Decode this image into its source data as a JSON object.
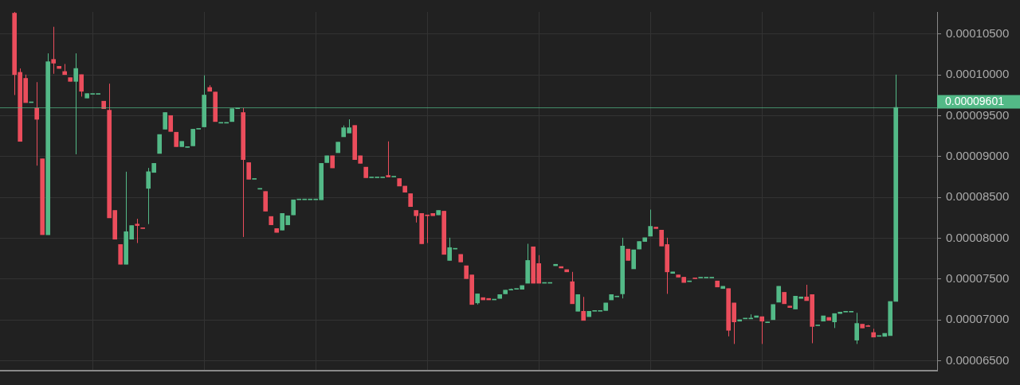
{
  "chart_data": {
    "type": "candlestick",
    "categories": [
      null,
      null,
      null,
      null,
      null,
      null,
      null,
      null,
      null,
      null,
      null,
      null,
      null,
      null,
      null,
      null,
      null,
      null,
      null,
      null,
      null,
      null,
      null,
      null,
      null,
      null,
      null,
      null,
      null,
      null,
      null,
      null,
      null,
      null,
      null,
      null,
      null,
      null,
      null,
      null,
      null,
      null,
      null,
      null,
      null,
      null,
      null,
      null,
      null,
      null,
      null,
      null,
      null,
      null,
      null,
      null,
      null,
      null,
      null,
      null,
      null,
      null,
      null,
      null,
      null,
      null,
      null,
      null,
      null,
      null,
      null,
      null,
      null,
      null,
      null,
      null,
      null,
      null,
      null,
      null,
      null,
      null,
      null,
      null,
      null,
      null,
      null,
      null,
      null,
      null,
      null,
      null,
      null,
      null,
      null,
      null,
      null,
      null,
      null,
      null,
      null,
      null,
      null,
      null,
      null,
      null,
      null,
      null,
      null,
      null,
      null,
      null,
      null,
      null,
      null,
      null,
      null,
      null,
      null,
      null,
      null,
      null,
      null,
      null,
      null,
      null,
      null,
      null,
      null,
      null,
      null,
      null,
      null,
      null,
      null,
      null,
      null,
      null,
      null,
      null,
      null,
      null,
      null,
      null,
      null,
      null,
      null,
      null,
      null,
      null,
      null,
      null,
      null,
      null,
      null,
      null,
      null,
      null,
      null
    ],
    "ohlc": [
      [
        0.00010755,
        0.0001077,
        9.753e-05,
        0.00010003
      ],
      [
        0.00010031,
        0.00010078,
        9.186e-05,
        9.186e-05
      ],
      [
        9.957e-05,
        0.00010003,
        9.66e-05,
        9.66e-05
      ],
      [
        9.66e-05,
        9.66e-05,
        9.66e-05,
        9.66e-05
      ],
      [
        9.595e-05,
        9.911e-05,
        8.889e-05,
        9.456e-05
      ],
      [
        8.973e-05,
        8.973e-05,
        8.044e-05,
        8.044e-05
      ],
      [
        8.044e-05,
        0.00010263,
        8.044e-05,
        0.00010161
      ],
      [
        0.00010189,
        0.00010588,
        0.00010013,
        0.00010143
      ],
      [
        0.00010105,
        0.00010105,
        0.00010078,
        0.00010078
      ],
      [
        0.00010041,
        0.00010133,
        0.00010003,
        0.00010003
      ],
      [
        9.966e-05,
        9.966e-05,
        9.92e-05,
        9.92e-05
      ],
      [
        9.92e-05,
        0.00010263,
        9.028e-05,
        0.00010078
      ],
      [
        0.00010003,
        0.00010003,
        9.734e-05,
        9.799e-05
      ],
      [
        9.716e-05,
        9.771e-05,
        9.716e-05,
        9.771e-05
      ],
      [
        9.762e-05,
        9.762e-05,
        9.762e-05,
        9.762e-05
      ],
      [
        9.762e-05,
        9.762e-05,
        9.762e-05,
        9.762e-05
      ],
      [
        9.678e-05,
        9.678e-05,
        9.586e-05,
        9.586e-05
      ],
      [
        9.567e-05,
        9.892e-05,
        8.249e-05,
        8.249e-05
      ],
      [
        8.341e-05,
        8.341e-05,
        7.989e-05,
        7.989e-05
      ],
      [
        7.924e-05,
        7.924e-05,
        7.682e-05,
        7.682e-05
      ],
      [
        7.682e-05,
        8.815e-05,
        7.682e-05,
        8.081e-05
      ],
      [
        7.989e-05,
        8.156e-05,
        7.989e-05,
        8.156e-05
      ],
      [
        8.174e-05,
        8.239e-05,
        7.942e-05,
        8.156e-05
      ],
      [
        8.128e-05,
        8.128e-05,
        8.119e-05,
        8.119e-05
      ],
      [
        8.611e-05,
        8.861e-05,
        8.174e-05,
        8.815e-05
      ],
      [
        8.806e-05,
        8.917e-05,
        8.806e-05,
        8.917e-05
      ],
      [
        9.038e-05,
        9.27e-05,
        9.038e-05,
        9.27e-05
      ],
      [
        9.335e-05,
        9.539e-05,
        9.335e-05,
        9.539e-05
      ],
      [
        9.502e-05,
        9.502e-05,
        9.307e-05,
        9.307e-05
      ],
      [
        9.298e-05,
        9.298e-05,
        9.121e-05,
        9.121e-05
      ],
      [
        9.121e-05,
        9.186e-05,
        9.121e-05,
        9.186e-05
      ],
      [
        9.112e-05,
        9.121e-05,
        9.112e-05,
        9.121e-05
      ],
      [
        9.131e-05,
        9.335e-05,
        9.131e-05,
        9.335e-05
      ],
      [
        9.335e-05,
        9.335e-05,
        9.335e-05,
        9.335e-05
      ],
      [
        9.363e-05,
        9.994e-05,
        9.363e-05,
        9.753e-05
      ],
      [
        9.846e-05,
        9.873e-05,
        9.799e-05,
        9.799e-05
      ],
      [
        9.79e-05,
        9.79e-05,
        9.428e-05,
        9.428e-05
      ],
      [
        9.409e-05,
        9.409e-05,
        9.409e-05,
        9.409e-05
      ],
      [
        9.409e-05,
        9.409e-05,
        9.409e-05,
        9.409e-05
      ],
      [
        9.428e-05,
        9.586e-05,
        9.428e-05,
        9.586e-05
      ],
      [
        9.586e-05,
        9.586e-05,
        9.586e-05,
        9.586e-05
      ],
      [
        9.539e-05,
        9.595e-05,
        8.016e-05,
        8.963e-05
      ],
      [
        8.926e-05,
        8.926e-05,
        8.722e-05,
        8.722e-05
      ],
      [
        8.722e-05,
        8.722e-05,
        8.722e-05,
        8.722e-05
      ],
      [
        8.601e-05,
        8.601e-05,
        8.601e-05,
        8.601e-05
      ],
      [
        8.573e-05,
        8.573e-05,
        8.332e-05,
        8.332e-05
      ],
      [
        8.267e-05,
        8.267e-05,
        8.165e-05,
        8.165e-05
      ],
      [
        8.119e-05,
        8.119e-05,
        8.072e-05,
        8.072e-05
      ],
      [
        8.1e-05,
        8.304e-05,
        8.1e-05,
        8.304e-05
      ],
      [
        8.165e-05,
        8.276e-05,
        8.165e-05,
        8.276e-05
      ],
      [
        8.286e-05,
        8.471e-05,
        8.286e-05,
        8.471e-05
      ],
      [
        8.471e-05,
        8.471e-05,
        8.471e-05,
        8.471e-05
      ],
      [
        8.471e-05,
        8.471e-05,
        8.471e-05,
        8.471e-05
      ],
      [
        8.471e-05,
        8.471e-05,
        8.471e-05,
        8.471e-05
      ],
      [
        8.471e-05,
        8.471e-05,
        8.471e-05,
        8.471e-05
      ],
      [
        8.471e-05,
        8.917e-05,
        8.471e-05,
        8.917e-05
      ],
      [
        8.926e-05,
        9.01e-05,
        8.926e-05,
        9.01e-05
      ],
      [
        9.01e-05,
        9.01e-05,
        8.861e-05,
        8.861e-05
      ],
      [
        9.047e-05,
        9.177e-05,
        9.047e-05,
        9.177e-05
      ],
      [
        9.242e-05,
        9.381e-05,
        9.242e-05,
        9.353e-05
      ],
      [
        9.288e-05,
        9.456e-05,
        9.288e-05,
        9.353e-05
      ],
      [
        9.381e-05,
        9.381e-05,
        8.963e-05,
        8.963e-05
      ],
      [
        9.01e-05,
        9.01e-05,
        8.917e-05,
        8.917e-05
      ],
      [
        8.871e-05,
        8.871e-05,
        8.741e-05,
        8.741e-05
      ],
      [
        8.741e-05,
        8.741e-05,
        8.741e-05,
        8.741e-05
      ],
      [
        8.741e-05,
        8.741e-05,
        8.741e-05,
        8.741e-05
      ],
      [
        8.741e-05,
        8.741e-05,
        8.741e-05,
        8.741e-05
      ],
      [
        8.769e-05,
        9.186e-05,
        8.75e-05,
        8.75e-05
      ],
      [
        8.75e-05,
        8.75e-05,
        8.75e-05,
        8.75e-05
      ],
      [
        8.731e-05,
        8.731e-05,
        8.639e-05,
        8.639e-05
      ],
      [
        8.639e-05,
        8.639e-05,
        8.564e-05,
        8.564e-05
      ],
      [
        8.546e-05,
        8.546e-05,
        8.388e-05,
        8.388e-05
      ],
      [
        8.341e-05,
        8.341e-05,
        8.193e-05,
        8.276e-05
      ],
      [
        8.304e-05,
        8.304e-05,
        7.933e-05,
        7.933e-05
      ],
      [
        8.286e-05,
        8.286e-05,
        7.942e-05,
        8.276e-05
      ],
      [
        8.304e-05,
        8.304e-05,
        8.276e-05,
        8.276e-05
      ],
      [
        8.286e-05,
        8.341e-05,
        8.286e-05,
        8.341e-05
      ],
      [
        8.332e-05,
        8.332e-05,
        7.803e-05,
        7.803e-05
      ],
      [
        7.729e-05,
        8.007e-05,
        7.729e-05,
        7.886e-05
      ],
      [
        7.868e-05,
        7.877e-05,
        7.868e-05,
        7.877e-05
      ],
      [
        7.803e-05,
        7.803e-05,
        7.71e-05,
        7.71e-05
      ],
      [
        7.664e-05,
        7.664e-05,
        7.506e-05,
        7.506e-05
      ],
      [
        7.552e-05,
        7.552e-05,
        7.19e-05,
        7.19e-05
      ],
      [
        7.209e-05,
        7.32e-05,
        7.19e-05,
        7.32e-05
      ],
      [
        7.274e-05,
        7.274e-05,
        7.246e-05,
        7.246e-05
      ],
      [
        7.264e-05,
        7.264e-05,
        7.246e-05,
        7.246e-05
      ],
      [
        7.246e-05,
        7.246e-05,
        7.246e-05,
        7.246e-05
      ],
      [
        7.264e-05,
        7.311e-05,
        7.264e-05,
        7.311e-05
      ],
      [
        7.32e-05,
        7.366e-05,
        7.32e-05,
        7.366e-05
      ],
      [
        7.366e-05,
        7.385e-05,
        7.366e-05,
        7.376e-05
      ],
      [
        7.376e-05,
        7.376e-05,
        7.376e-05,
        7.376e-05
      ],
      [
        7.376e-05,
        7.422e-05,
        7.376e-05,
        7.422e-05
      ],
      [
        7.45e-05,
        7.933e-05,
        7.45e-05,
        7.729e-05
      ],
      [
        7.896e-05,
        7.896e-05,
        7.45e-05,
        7.45e-05
      ],
      [
        7.691e-05,
        7.794e-05,
        7.45e-05,
        7.45e-05
      ],
      [
        7.45e-05,
        7.45e-05,
        7.45e-05,
        7.45e-05
      ],
      [
        7.45e-05,
        7.45e-05,
        7.45e-05,
        7.45e-05
      ],
      [
        7.664e-05,
        7.682e-05,
        7.664e-05,
        7.682e-05
      ],
      [
        7.654e-05,
        7.654e-05,
        7.636e-05,
        7.636e-05
      ],
      [
        7.617e-05,
        7.617e-05,
        7.589e-05,
        7.589e-05
      ],
      [
        7.469e-05,
        7.589e-05,
        7.199e-05,
        7.199e-05
      ],
      [
        7.107e-05,
        7.311e-05,
        7.107e-05,
        7.311e-05
      ],
      [
        7.107e-05,
        7.283e-05,
        6.995e-05,
        6.995e-05
      ],
      [
        7.041e-05,
        7.107e-05,
        7.041e-05,
        7.107e-05
      ],
      [
        7.107e-05,
        7.107e-05,
        7.107e-05,
        7.107e-05
      ],
      [
        7.107e-05,
        7.107e-05,
        7.107e-05,
        7.107e-05
      ],
      [
        7.116e-05,
        7.209e-05,
        7.116e-05,
        7.209e-05
      ],
      [
        7.246e-05,
        7.311e-05,
        7.246e-05,
        7.311e-05
      ],
      [
        7.283e-05,
        7.283e-05,
        7.283e-05,
        7.283e-05
      ],
      [
        7.32e-05,
        8.007e-05,
        7.264e-05,
        7.905e-05
      ],
      [
        7.868e-05,
        7.868e-05,
        7.729e-05,
        7.729e-05
      ],
      [
        7.626e-05,
        7.859e-05,
        7.626e-05,
        7.859e-05
      ],
      [
        7.868e-05,
        7.961e-05,
        7.868e-05,
        7.961e-05
      ],
      [
        7.961e-05,
        8.007e-05,
        7.961e-05,
        8.007e-05
      ],
      [
        8.026e-05,
        8.351e-05,
        8.026e-05,
        8.146e-05
      ],
      [
        8.137e-05,
        8.137e-05,
        8.119e-05,
        8.119e-05
      ],
      [
        8.1e-05,
        8.1e-05,
        7.905e-05,
        7.905e-05
      ],
      [
        7.924e-05,
        8.007e-05,
        7.32e-05,
        7.589e-05
      ],
      [
        7.571e-05,
        7.589e-05,
        7.571e-05,
        7.589e-05
      ],
      [
        7.552e-05,
        7.552e-05,
        7.524e-05,
        7.524e-05
      ],
      [
        7.524e-05,
        7.524e-05,
        7.459e-05,
        7.459e-05
      ],
      [
        7.469e-05,
        7.478e-05,
        7.469e-05,
        7.478e-05
      ],
      [
        7.515e-05,
        7.515e-05,
        7.506e-05,
        7.506e-05
      ],
      [
        7.515e-05,
        7.515e-05,
        7.515e-05,
        7.515e-05
      ],
      [
        7.515e-05,
        7.515e-05,
        7.515e-05,
        7.515e-05
      ],
      [
        7.515e-05,
        7.515e-05,
        7.515e-05,
        7.515e-05
      ],
      [
        7.478e-05,
        7.478e-05,
        7.404e-05,
        7.404e-05
      ],
      [
        7.385e-05,
        7.413e-05,
        7.385e-05,
        7.413e-05
      ],
      [
        7.385e-05,
        7.385e-05,
        6.8e-05,
        6.874e-05
      ],
      [
        7.209e-05,
        7.209e-05,
        6.707e-05,
        6.977e-05
      ],
      [
        6.986e-05,
        7.004e-05,
        6.986e-05,
        7.004e-05
      ],
      [
        7.014e-05,
        7.014e-05,
        7.014e-05,
        7.014e-05
      ],
      [
        7.014e-05,
        7.069e-05,
        7.014e-05,
        7.014e-05
      ],
      [
        7.032e-05,
        7.051e-05,
        7.032e-05,
        7.051e-05
      ],
      [
        7.041e-05,
        7.041e-05,
        6.707e-05,
        6.986e-05
      ],
      [
        6.967e-05,
        6.977e-05,
        6.967e-05,
        6.977e-05
      ],
      [
        7.004e-05,
        7.19e-05,
        7.004e-05,
        7.19e-05
      ],
      [
        7.218e-05,
        7.413e-05,
        7.218e-05,
        7.413e-05
      ],
      [
        7.339e-05,
        7.339e-05,
        7.199e-05,
        7.199e-05
      ],
      [
        7.171e-05,
        7.171e-05,
        7.153e-05,
        7.153e-05
      ],
      [
        7.134e-05,
        7.292e-05,
        7.134e-05,
        7.292e-05
      ],
      [
        7.264e-05,
        7.283e-05,
        7.264e-05,
        7.283e-05
      ],
      [
        7.283e-05,
        7.431e-05,
        7.237e-05,
        7.237e-05
      ],
      [
        7.311e-05,
        7.311e-05,
        6.716e-05,
        6.921e-05
      ],
      [
        6.93e-05,
        6.93e-05,
        6.93e-05,
        6.93e-05
      ],
      [
        6.986e-05,
        7.051e-05,
        6.986e-05,
        7.051e-05
      ],
      [
        7.032e-05,
        7.032e-05,
        6.995e-05,
        6.995e-05
      ],
      [
        6.977e-05,
        7.079e-05,
        6.902e-05,
        7.079e-05
      ],
      [
        7.079e-05,
        7.097e-05,
        7.079e-05,
        7.097e-05
      ],
      [
        7.097e-05,
        7.097e-05,
        7.097e-05,
        7.097e-05
      ],
      [
        7.097e-05,
        7.097e-05,
        7.097e-05,
        7.097e-05
      ],
      [
        6.754e-05,
        7.088e-05,
        6.707e-05,
        6.958e-05
      ],
      [
        6.949e-05,
        6.949e-05,
        6.902e-05,
        6.902e-05
      ],
      [
        6.93e-05,
        6.94e-05,
        6.921e-05,
        6.921e-05
      ],
      [
        6.847e-05,
        6.893e-05,
        6.791e-05,
        6.791e-05
      ],
      [
        6.8e-05,
        6.8e-05,
        6.8e-05,
        6.8e-05
      ],
      [
        6.8e-05,
        6.837e-05,
        6.8e-05,
        6.837e-05
      ],
      [
        6.809e-05,
        7.227e-05,
        6.809e-05,
        7.227e-05
      ],
      [
        7.227e-05,
        0.00010003,
        7.227e-05,
        9.601e-05
      ]
    ],
    "colors": [
      "#eb4d5c",
      "#eb4d5c",
      "#eb4d5c",
      "#53b987",
      "#eb4d5c",
      "#eb4d5c",
      "#53b987",
      "#eb4d5c",
      "#eb4d5c",
      "#eb4d5c",
      "#eb4d5c",
      "#53b987",
      "#eb4d5c",
      "#53b987",
      "#53b987",
      "#53b987",
      "#eb4d5c",
      "#eb4d5c",
      "#eb4d5c",
      "#eb4d5c",
      "#53b987",
      "#53b987",
      "#eb4d5c",
      "#eb4d5c",
      "#53b987",
      "#53b987",
      "#53b987",
      "#53b987",
      "#eb4d5c",
      "#eb4d5c",
      "#53b987",
      "#53b987",
      "#53b987",
      "#53b987",
      "#53b987",
      "#eb4d5c",
      "#eb4d5c",
      "#53b987",
      "#53b987",
      "#53b987",
      "#53b987",
      "#eb4d5c",
      "#eb4d5c",
      "#53b987",
      "#53b987",
      "#eb4d5c",
      "#eb4d5c",
      "#eb4d5c",
      "#53b987",
      "#53b987",
      "#53b987",
      "#53b987",
      "#53b987",
      "#53b987",
      "#53b987",
      "#53b987",
      "#53b987",
      "#eb4d5c",
      "#53b987",
      "#53b987",
      "#53b987",
      "#eb4d5c",
      "#eb4d5c",
      "#eb4d5c",
      "#53b987",
      "#53b987",
      "#53b987",
      "#eb4d5c",
      "#53b987",
      "#eb4d5c",
      "#eb4d5c",
      "#eb4d5c",
      "#eb4d5c",
      "#eb4d5c",
      "#eb4d5c",
      "#eb4d5c",
      "#53b987",
      "#eb4d5c",
      "#53b987",
      "#53b987",
      "#eb4d5c",
      "#eb4d5c",
      "#eb4d5c",
      "#53b987",
      "#eb4d5c",
      "#eb4d5c",
      "#53b987",
      "#53b987",
      "#53b987",
      "#53b987",
      "#53b987",
      "#53b987",
      "#53b987",
      "#eb4d5c",
      "#eb4d5c",
      "#53b987",
      "#53b987",
      "#53b987",
      "#eb4d5c",
      "#eb4d5c",
      "#eb4d5c",
      "#53b987",
      "#eb4d5c",
      "#53b987",
      "#53b987",
      "#53b987",
      "#53b987",
      "#53b987",
      "#53b987",
      "#53b987",
      "#eb4d5c",
      "#53b987",
      "#53b987",
      "#53b987",
      "#53b987",
      "#eb4d5c",
      "#eb4d5c",
      "#eb4d5c",
      "#53b987",
      "#eb4d5c",
      "#eb4d5c",
      "#53b987",
      "#eb4d5c",
      "#53b987",
      "#53b987",
      "#53b987",
      "#eb4d5c",
      "#53b987",
      "#eb4d5c",
      "#eb4d5c",
      "#53b987",
      "#53b987",
      "#53b987",
      "#53b987",
      "#eb4d5c",
      "#53b987",
      "#53b987",
      "#53b987",
      "#eb4d5c",
      "#eb4d5c",
      "#53b987",
      "#53b987",
      "#eb4d5c",
      "#eb4d5c",
      "#53b987",
      "#53b987",
      "#eb4d5c",
      "#53b987",
      "#53b987",
      "#53b987",
      "#53b987",
      "#53b987",
      "#eb4d5c",
      "#eb4d5c",
      "#eb4d5c",
      "#53b987",
      "#53b987",
      "#53b987",
      "#53b987"
    ],
    "ylim": [
      6.38e-05,
      0.0001077
    ],
    "yticks": [
      {
        "value": 6.5e-05,
        "label": "0.00006500"
      },
      {
        "value": 7e-05,
        "label": "0.00007000"
      },
      {
        "value": 7.5e-05,
        "label": "0.00007500"
      },
      {
        "value": 8e-05,
        "label": "0.00008000"
      },
      {
        "value": 8.5e-05,
        "label": "0.00008500"
      },
      {
        "value": 9e-05,
        "label": "0.00009000"
      },
      {
        "value": 9.5e-05,
        "label": "0.00009500"
      },
      {
        "value": 0.0001,
        "label": "0.00010000"
      },
      {
        "value": 0.000105,
        "label": "0.00010500"
      }
    ],
    "ref_lines": [
      {
        "axis": "y",
        "value": 9.601e-05,
        "label": "0.00009601",
        "color": "#53b987"
      }
    ],
    "grid": true,
    "legend": false,
    "tick_labels": "y"
  }
}
